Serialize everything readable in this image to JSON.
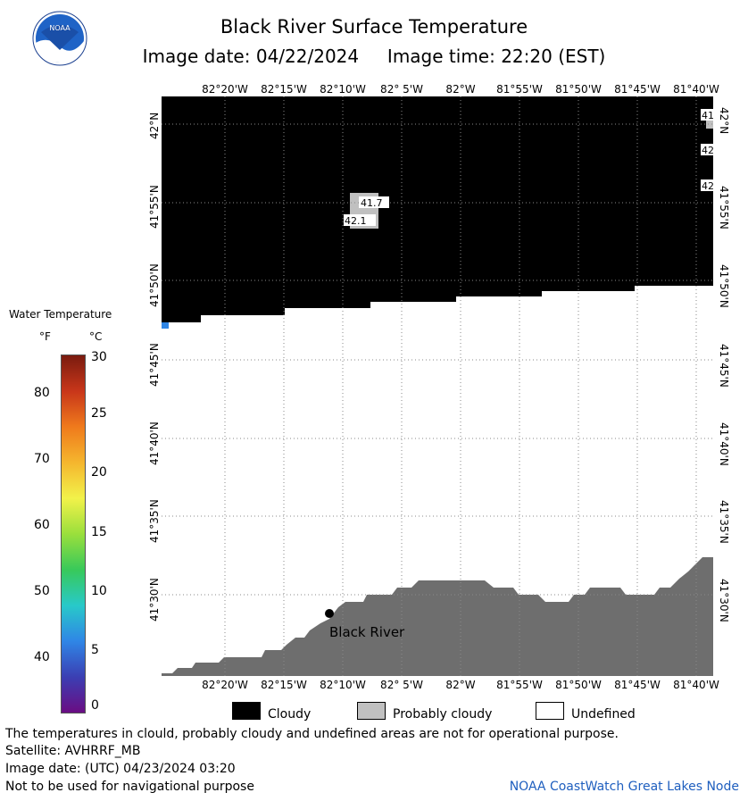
{
  "header": {
    "title": "Black River Surface Temperature",
    "image_date_label": "Image date:",
    "image_date": "04/22/2024",
    "image_time_label": "Image time:",
    "image_time": "22:20 (EST)",
    "logo_text": "NOAA"
  },
  "map": {
    "lon_labels": [
      "82°20'W",
      "82°15'W",
      "82°10'W",
      "82° 5'W",
      "82°W",
      "81°55'W",
      "81°50'W",
      "81°45'W",
      "81°40'W"
    ],
    "lat_labels": [
      "42°N",
      "41°55'N",
      "41°50'N",
      "41°45'N",
      "41°40'N",
      "41°35'N",
      "41°30'N"
    ],
    "station": {
      "name": "Black River"
    },
    "temperature_readings": [
      "41.7",
      "42.1",
      "41",
      "42",
      "42"
    ],
    "colors": {
      "cloudy": "#000000",
      "probably_cloudy": "#c0c0c0",
      "undefined": "#ffffff",
      "land": "#6e6e6e",
      "grid": "#8a8a8a"
    }
  },
  "legend": {
    "title": "Water Temperature",
    "unit_f": "°F",
    "unit_c": "°C",
    "f_ticks": [
      "80",
      "70",
      "60",
      "50",
      "40"
    ],
    "c_ticks": [
      "30",
      "25",
      "20",
      "15",
      "10",
      "5",
      "0"
    ],
    "scale_colors": [
      "#6a0d83",
      "#3b3fb3",
      "#2f86e6",
      "#28c9c9",
      "#38c95a",
      "#9adf3c",
      "#f2f24a",
      "#f5b62e",
      "#ef7a1c",
      "#c8361a",
      "#7a1b0f"
    ]
  },
  "key": {
    "cloudy": "Cloudy",
    "probably_cloudy": "Probably cloudy",
    "undefined": "Undefined"
  },
  "footer": {
    "disclaimer": "The temperatures in clould, probably cloudy and undefined areas are not for operational purpose.",
    "satellite": "Satellite: AVHRRF_MB",
    "utc_date": "Image date: (UTC) 04/23/2024  03:20",
    "nav_warning": "Not to be used for navigational purpose",
    "credit": "NOAA CoastWatch Great Lakes Node"
  }
}
